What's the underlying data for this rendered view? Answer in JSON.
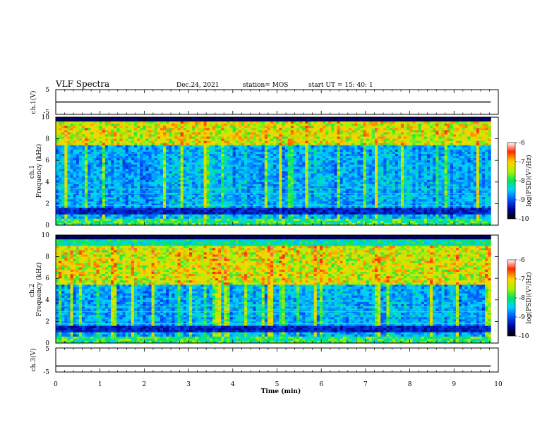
{
  "header": {
    "title": "VLF Spectra",
    "date": "Dec.24, 2021",
    "station": "station= MOS",
    "start": "start  UT =   15: 40: 1"
  },
  "chart_data": [
    {
      "type": "line",
      "name": "ch1-waveform",
      "ylabel": "ch.1(V)",
      "ylim": [
        -5,
        5
      ],
      "yticks": [
        "5",
        "-5"
      ],
      "values": [
        0
      ]
    },
    {
      "type": "heatmap",
      "name": "ch1-spectrogram",
      "ylabel": "ch.1\nFrequency (kHz)",
      "ylim": [
        0,
        10
      ],
      "yticks": [
        "0",
        "2",
        "4",
        "6",
        "8",
        "10"
      ],
      "xlim": [
        0,
        10
      ],
      "data_end_min": 9.83,
      "emission_band_khz": [
        7.5,
        9.5
      ],
      "colorbar": {
        "label": "log(PSD)(V²/Hz)",
        "ticks": [
          "-6",
          "-7",
          "-8",
          "-9",
          "-10"
        ],
        "range": [
          -10,
          -6
        ]
      }
    },
    {
      "type": "heatmap",
      "name": "ch2-spectrogram",
      "ylabel": "ch.2\nFrequency (kHz)",
      "ylim": [
        0,
        10
      ],
      "yticks": [
        "0",
        "2",
        "4",
        "6",
        "8",
        "10"
      ],
      "xlim": [
        0,
        10
      ],
      "data_end_min": 9.83,
      "emission_band_khz": [
        5.5,
        9.0
      ],
      "colorbar": {
        "label": "log(PSD)(V²/Hz)",
        "ticks": [
          "-6",
          "-7",
          "-8",
          "-9",
          "-10"
        ],
        "range": [
          -10,
          -6
        ]
      }
    },
    {
      "type": "line",
      "name": "ch3-waveform",
      "ylabel": "ch.3(V)",
      "ylim": [
        -5,
        5
      ],
      "yticks": [
        "5",
        "-5"
      ],
      "values": [
        -2.5
      ]
    }
  ],
  "xaxis": {
    "label": "Time  (min)",
    "ticks": [
      "0",
      "1",
      "2",
      "3",
      "4",
      "5",
      "6",
      "7",
      "8",
      "9",
      "10"
    ]
  }
}
